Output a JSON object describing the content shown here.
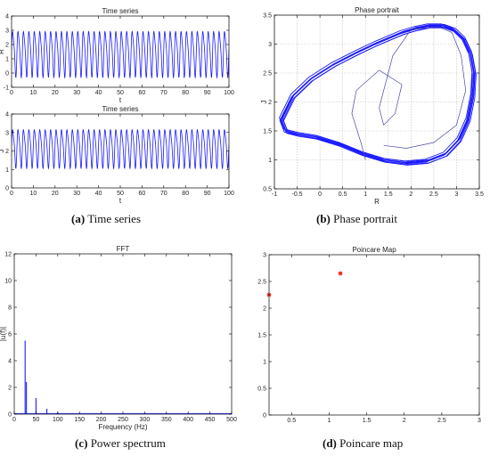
{
  "captions": {
    "a": {
      "letter": "(a)",
      "text": "Time series"
    },
    "b": {
      "letter": "(b)",
      "text": "Phase portrait"
    },
    "c": {
      "letter": "(c)",
      "text": "Power spectrum"
    },
    "d": {
      "letter": "(d)",
      "text": "Poincare map"
    }
  },
  "colors": {
    "line": "#1a1aff",
    "marker": "#ff0000",
    "grid": "#bfbfbf",
    "axis": "#000000"
  },
  "chart_data": [
    {
      "id": "ts_R",
      "type": "line",
      "title": "Time series",
      "xlabel": "t",
      "ylabel": "R",
      "xlim": [
        0,
        100
      ],
      "ylim": [
        -1,
        4
      ],
      "xticks": [
        "0",
        "10",
        "20",
        "30",
        "40",
        "50",
        "60",
        "70",
        "80",
        "90",
        "100"
      ],
      "yticks": [
        "-1",
        "0",
        "1",
        "2",
        "3",
        "4"
      ],
      "series": [
        {
          "signal": "oscillation",
          "period": 2.5,
          "min": -0.4,
          "max": 3.3
        }
      ]
    },
    {
      "id": "ts_J",
      "type": "line",
      "title": "Time series",
      "xlabel": "t",
      "ylabel": "J",
      "xlim": [
        0,
        100
      ],
      "ylim": [
        0,
        4
      ],
      "xticks": [
        "0",
        "10",
        "20",
        "30",
        "40",
        "50",
        "60",
        "70",
        "80",
        "90",
        "100"
      ],
      "yticks": [
        "0",
        "1",
        "2",
        "3",
        "4"
      ],
      "series": [
        {
          "signal": "oscillation",
          "period": 2.5,
          "min": 1.0,
          "max": 3.4
        }
      ]
    },
    {
      "id": "phase",
      "type": "line",
      "title": "Phase portrait",
      "xlabel": "R",
      "ylabel": "J",
      "xlim": [
        -1,
        3.5
      ],
      "ylim": [
        0.5,
        3.5
      ],
      "grid": true,
      "xticks": [
        "-1",
        "-0.5",
        "0",
        "0.5",
        "1",
        "1.5",
        "2",
        "2.5",
        "3",
        "3.5"
      ],
      "yticks": [
        "0.5",
        "1",
        "1.5",
        "2",
        "2.5",
        "3",
        "3.5"
      ],
      "series": [
        {
          "x": [
            -0.85,
            -0.6,
            -0.2,
            0.3,
            0.8,
            1.2,
            1.5,
            1.8,
            2.1,
            2.4,
            2.7,
            2.95,
            3.15,
            3.3,
            3.38,
            3.35,
            3.25,
            3.05,
            2.75,
            2.35,
            1.9,
            1.4,
            0.9,
            0.4,
            -0.1,
            -0.5,
            -0.75,
            -0.85
          ],
          "y": [
            1.7,
            2.1,
            2.4,
            2.65,
            2.85,
            3.0,
            3.1,
            3.2,
            3.27,
            3.32,
            3.32,
            3.25,
            3.1,
            2.85,
            2.5,
            2.1,
            1.7,
            1.35,
            1.1,
            0.98,
            0.95,
            1.0,
            1.12,
            1.28,
            1.4,
            1.45,
            1.5,
            1.7
          ]
        }
      ]
    },
    {
      "id": "fft",
      "type": "bar",
      "title": "FFT",
      "xlabel": "Frequency (Hz)",
      "ylabel": "|u(f)|",
      "xlim": [
        0,
        500
      ],
      "ylim": [
        0,
        12
      ],
      "xticks": [
        "0",
        "50",
        "100",
        "150",
        "200",
        "250",
        "300",
        "350",
        "400",
        "450",
        "500"
      ],
      "yticks": [
        "0",
        "2",
        "4",
        "6",
        "8",
        "10",
        "12"
      ],
      "series": [
        {
          "x": [
            25,
            28,
            50,
            75,
            100
          ],
          "y": [
            5.5,
            2.4,
            1.2,
            0.4,
            0.15
          ]
        }
      ]
    },
    {
      "id": "poincare",
      "type": "scatter",
      "title": "Poincare Map",
      "xlabel": "",
      "ylabel": "",
      "xlim": [
        0.2,
        3
      ],
      "ylim": [
        0,
        3
      ],
      "xticks": [
        "0.5",
        "1",
        "1.5",
        "2",
        "2.5",
        "3"
      ],
      "yticks": [
        "0",
        "0.5",
        "1",
        "1.5",
        "2",
        "2.5",
        "3"
      ],
      "series": [
        {
          "x": [
            0.2,
            1.15
          ],
          "y": [
            2.25,
            2.65
          ]
        }
      ]
    }
  ]
}
